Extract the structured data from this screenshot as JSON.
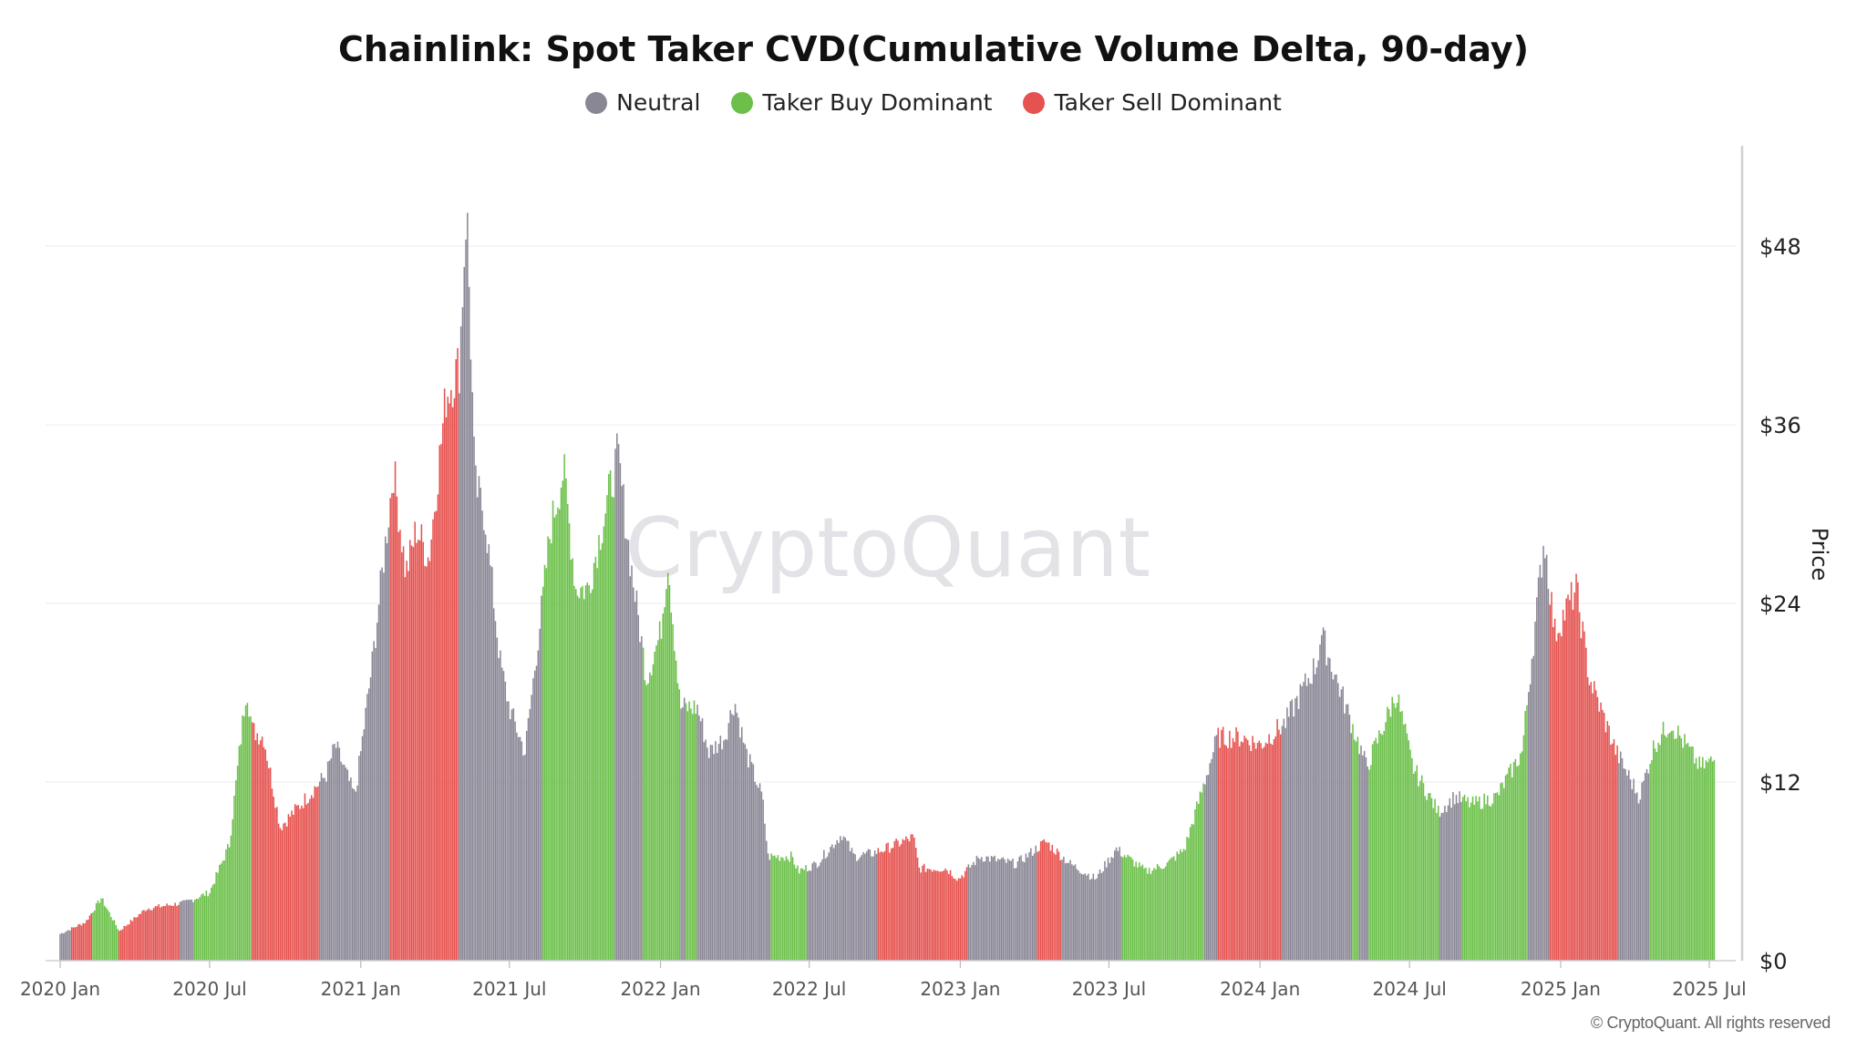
{
  "chart_data": {
    "type": "bar",
    "title": "Chainlink: Spot Taker CVD(Cumulative Volume Delta, 90-day)",
    "ylabel": "Price",
    "ylim": [
      0,
      54
    ],
    "yticks": [
      {
        "value": 0,
        "label": "$0"
      },
      {
        "value": 12,
        "label": "$12"
      },
      {
        "value": 24,
        "label": "$24"
      },
      {
        "value": 36,
        "label": "$36"
      },
      {
        "value": 48,
        "label": "$48"
      }
    ],
    "xlim": [
      "2019-12-28",
      "2025-07-15"
    ],
    "xticks": [
      {
        "date": "2020-01-01",
        "label": "2020 Jan"
      },
      {
        "date": "2020-07-01",
        "label": "2020 Jul"
      },
      {
        "date": "2021-01-01",
        "label": "2021 Jan"
      },
      {
        "date": "2021-07-01",
        "label": "2021 Jul"
      },
      {
        "date": "2022-01-01",
        "label": "2022 Jan"
      },
      {
        "date": "2022-07-01",
        "label": "2022 Jul"
      },
      {
        "date": "2023-01-01",
        "label": "2023 Jan"
      },
      {
        "date": "2023-07-01",
        "label": "2023 Jul"
      },
      {
        "date": "2024-01-01",
        "label": "2024 Jan"
      },
      {
        "date": "2024-07-01",
        "label": "2024 Jul"
      },
      {
        "date": "2025-01-01",
        "label": "2025 Jan"
      },
      {
        "date": "2025-07-01",
        "label": "2025 Jul"
      }
    ],
    "grid": true,
    "legend_position": "top",
    "legend": [
      {
        "key": "neutral",
        "name": "Neutral",
        "color": "#8a8795"
      },
      {
        "key": "buy",
        "name": "Taker Buy Dominant",
        "color": "#6cc04a"
      },
      {
        "key": "sell",
        "name": "Taker Sell Dominant",
        "color": "#e5524f"
      }
    ],
    "price": [
      [
        "2020-01-01",
        1.8
      ],
      [
        "2020-02-01",
        2.6
      ],
      [
        "2020-02-20",
        4.2
      ],
      [
        "2020-03-13",
        2.0
      ],
      [
        "2020-04-15",
        3.5
      ],
      [
        "2020-06-01",
        3.9
      ],
      [
        "2020-07-01",
        4.6
      ],
      [
        "2020-07-25",
        7.8
      ],
      [
        "2020-08-15",
        18.5
      ],
      [
        "2020-08-22",
        15.5
      ],
      [
        "2020-09-05",
        15
      ],
      [
        "2020-09-25",
        9
      ],
      [
        "2020-10-20",
        10.5
      ],
      [
        "2020-11-20",
        12.5
      ],
      [
        "2020-12-01",
        14.5
      ],
      [
        "2020-12-25",
        11
      ],
      [
        "2021-01-15",
        20
      ],
      [
        "2021-02-10",
        33
      ],
      [
        "2021-02-25",
        26
      ],
      [
        "2021-03-10",
        29
      ],
      [
        "2021-03-25",
        27
      ],
      [
        "2021-04-15",
        38
      ],
      [
        "2021-05-01",
        40
      ],
      [
        "2021-05-10",
        51
      ],
      [
        "2021-05-20",
        32
      ],
      [
        "2021-06-01",
        30
      ],
      [
        "2021-06-20",
        20
      ],
      [
        "2021-07-01",
        17
      ],
      [
        "2021-07-20",
        14
      ],
      [
        "2021-08-10",
        24
      ],
      [
        "2021-08-20",
        29
      ],
      [
        "2021-09-05",
        33
      ],
      [
        "2021-09-20",
        25
      ],
      [
        "2021-10-05",
        25
      ],
      [
        "2021-10-25",
        30
      ],
      [
        "2021-11-10",
        34
      ],
      [
        "2021-11-25",
        27
      ],
      [
        "2021-12-15",
        19
      ],
      [
        "2022-01-01",
        22
      ],
      [
        "2022-01-10",
        27
      ],
      [
        "2022-01-25",
        17
      ],
      [
        "2022-02-15",
        17
      ],
      [
        "2022-03-01",
        14
      ],
      [
        "2022-03-20",
        15
      ],
      [
        "2022-04-01",
        17.5
      ],
      [
        "2022-04-15",
        14
      ],
      [
        "2022-05-05",
        11
      ],
      [
        "2022-05-12",
        7
      ],
      [
        "2022-06-10",
        7
      ],
      [
        "2022-06-18",
        6
      ],
      [
        "2022-07-10",
        6.5
      ],
      [
        "2022-08-10",
        8.5
      ],
      [
        "2022-08-25",
        7
      ],
      [
        "2022-09-15",
        7.2
      ],
      [
        "2022-10-01",
        7.5
      ],
      [
        "2022-11-05",
        8.3
      ],
      [
        "2022-11-12",
        6.2
      ],
      [
        "2022-12-15",
        6.2
      ],
      [
        "2022-12-30",
        5.5
      ],
      [
        "2023-01-25",
        7
      ],
      [
        "2023-03-10",
        6.5
      ],
      [
        "2023-04-15",
        8
      ],
      [
        "2023-05-15",
        6.5
      ],
      [
        "2023-06-15",
        5.5
      ],
      [
        "2023-07-10",
        7.5
      ],
      [
        "2023-08-15",
        6
      ],
      [
        "2023-09-10",
        6.5
      ],
      [
        "2023-10-01",
        7.5
      ],
      [
        "2023-10-20",
        11
      ],
      [
        "2023-11-10",
        15
      ],
      [
        "2023-12-10",
        15
      ],
      [
        "2024-01-01",
        14.5
      ],
      [
        "2024-02-01",
        16
      ],
      [
        "2024-03-10",
        20
      ],
      [
        "2024-03-15",
        22
      ],
      [
        "2024-04-15",
        17
      ],
      [
        "2024-05-10",
        13
      ],
      [
        "2024-06-01",
        16
      ],
      [
        "2024-06-15",
        18
      ],
      [
        "2024-07-05",
        13
      ],
      [
        "2024-08-05",
        10
      ],
      [
        "2024-08-25",
        11
      ],
      [
        "2024-09-15",
        10.5
      ],
      [
        "2024-10-15",
        11
      ],
      [
        "2024-11-15",
        14
      ],
      [
        "2024-12-12",
        28.5
      ],
      [
        "2024-12-25",
        22
      ],
      [
        "2025-01-20",
        25
      ],
      [
        "2025-02-05",
        19
      ],
      [
        "2025-03-10",
        14
      ],
      [
        "2025-04-07",
        11
      ],
      [
        "2025-04-25",
        14.5
      ],
      [
        "2025-05-15",
        16
      ],
      [
        "2025-06-20",
        13
      ],
      [
        "2025-07-08",
        13.5
      ]
    ],
    "regimes": [
      [
        "2020-01-01",
        "2020-01-15",
        "neutral"
      ],
      [
        "2020-01-15",
        "2020-02-10",
        "sell"
      ],
      [
        "2020-02-10",
        "2020-03-12",
        "buy"
      ],
      [
        "2020-03-12",
        "2020-05-25",
        "sell"
      ],
      [
        "2020-05-25",
        "2020-06-12",
        "neutral"
      ],
      [
        "2020-06-12",
        "2020-08-22",
        "buy"
      ],
      [
        "2020-08-22",
        "2020-11-12",
        "sell"
      ],
      [
        "2020-11-12",
        "2021-02-06",
        "neutral"
      ],
      [
        "2021-02-06",
        "2021-05-01",
        "sell"
      ],
      [
        "2021-05-01",
        "2021-08-10",
        "neutral"
      ],
      [
        "2021-08-10",
        "2021-11-06",
        "buy"
      ],
      [
        "2021-11-06",
        "2021-12-10",
        "neutral"
      ],
      [
        "2021-12-10",
        "2022-01-25",
        "buy"
      ],
      [
        "2022-01-25",
        "2022-02-01",
        "neutral"
      ],
      [
        "2022-02-01",
        "2022-02-15",
        "buy"
      ],
      [
        "2022-02-15",
        "2022-05-15",
        "neutral"
      ],
      [
        "2022-05-15",
        "2022-06-28",
        "buy"
      ],
      [
        "2022-06-28",
        "2022-09-22",
        "neutral"
      ],
      [
        "2022-09-22",
        "2023-01-10",
        "sell"
      ],
      [
        "2023-01-10",
        "2023-04-04",
        "neutral"
      ],
      [
        "2023-04-04",
        "2023-05-04",
        "sell"
      ],
      [
        "2023-05-04",
        "2023-07-18",
        "neutral"
      ],
      [
        "2023-07-18",
        "2023-10-25",
        "buy"
      ],
      [
        "2023-10-25",
        "2023-11-10",
        "neutral"
      ],
      [
        "2023-11-10",
        "2024-01-28",
        "sell"
      ],
      [
        "2024-01-28",
        "2024-04-22",
        "neutral"
      ],
      [
        "2024-04-22",
        "2024-05-01",
        "buy"
      ],
      [
        "2024-05-01",
        "2024-05-12",
        "neutral"
      ],
      [
        "2024-05-12",
        "2024-08-07",
        "buy"
      ],
      [
        "2024-08-07",
        "2024-09-04",
        "neutral"
      ],
      [
        "2024-09-04",
        "2024-11-22",
        "buy"
      ],
      [
        "2024-11-22",
        "2024-12-19",
        "neutral"
      ],
      [
        "2024-12-19",
        "2025-03-13",
        "sell"
      ],
      [
        "2025-03-13",
        "2025-04-19",
        "neutral"
      ],
      [
        "2025-04-19",
        "2025-07-10",
        "buy"
      ]
    ]
  },
  "watermark": "CryptoQuant",
  "copyright": "© CryptoQuant. All rights reserved"
}
